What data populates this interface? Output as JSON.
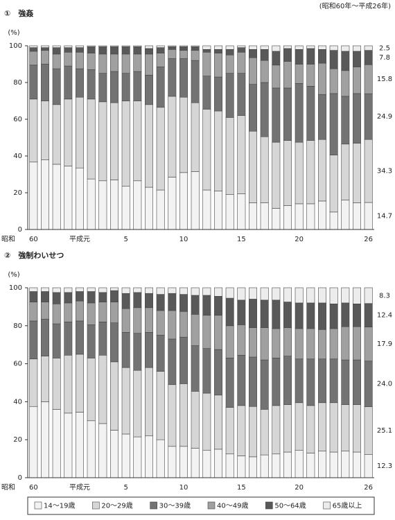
{
  "note": "(昭和60年～平成26年)",
  "chart_data": [
    {
      "type": "stacked_bar",
      "title": "①　強姦",
      "ylabel": "(%)",
      "xlabel": "昭和",
      "categories": [
        "60",
        null,
        null,
        null,
        "平成元",
        null,
        null,
        null,
        "5",
        null,
        null,
        null,
        null,
        "10",
        null,
        null,
        null,
        null,
        "15",
        null,
        null,
        null,
        null,
        "20",
        null,
        null,
        null,
        null,
        null,
        "26"
      ],
      "ylim": [
        0,
        100
      ],
      "yticks": [
        0,
        20,
        40,
        60,
        80,
        100
      ],
      "series": [
        {
          "color": "#f2f2f2",
          "values": [
            36.7,
            38,
            35.5,
            34.5,
            33.5,
            27.5,
            26.5,
            27,
            23.5,
            26.5,
            23,
            21.5,
            28.5,
            31,
            31.5,
            21.5,
            21,
            19,
            19.5,
            14.5,
            14.5,
            11.5,
            13,
            14,
            14,
            15.5,
            9.5,
            16,
            14.5,
            14.7
          ],
          "value_labels": [
            null,
            null,
            null,
            null,
            null,
            null,
            null,
            null,
            null,
            null,
            null,
            null,
            null,
            null,
            null,
            null,
            null,
            null,
            null,
            null,
            null,
            null,
            null,
            null,
            null,
            null,
            null,
            null,
            null,
            "14.7"
          ]
        },
        {
          "color": "#d6d6d6",
          "values": [
            34.3,
            32,
            32.5,
            36.5,
            38.5,
            43.5,
            43,
            42,
            46.5,
            43.5,
            45,
            45,
            44,
            41,
            37.5,
            44,
            43.5,
            42,
            42.5,
            39,
            36,
            36,
            35.5,
            33.5,
            34.5,
            33.5,
            31,
            30.5,
            32.5,
            34.3
          ],
          "value_labels": [
            null,
            null,
            null,
            null,
            null,
            null,
            null,
            null,
            null,
            null,
            null,
            null,
            null,
            null,
            null,
            null,
            null,
            null,
            null,
            null,
            null,
            null,
            null,
            null,
            null,
            null,
            null,
            null,
            null,
            "34.3"
          ]
        },
        {
          "color": "#737373",
          "values": [
            18.5,
            20,
            19.5,
            18,
            15.5,
            16,
            15.5,
            17,
            15,
            16,
            16,
            22,
            20.5,
            21,
            23,
            18,
            18.5,
            24,
            23,
            25.5,
            29.5,
            29.5,
            28.5,
            32,
            29.5,
            24.5,
            33.5,
            26,
            27,
            24.9
          ],
          "value_labels": [
            null,
            null,
            null,
            null,
            null,
            null,
            null,
            null,
            null,
            null,
            null,
            null,
            null,
            null,
            null,
            null,
            null,
            null,
            null,
            null,
            null,
            null,
            null,
            null,
            null,
            null,
            null,
            null,
            null,
            "24.9"
          ]
        },
        {
          "color": "#a0a0a0",
          "values": [
            7.5,
            7.5,
            8,
            7.5,
            9,
            9,
            10.5,
            9.5,
            10.5,
            9.5,
            11.5,
            7.5,
            5,
            4.5,
            5.5,
            13,
            13,
            10,
            11.5,
            14.5,
            12,
            12.5,
            14.5,
            10.5,
            12,
            17,
            13.5,
            14,
            14.5,
            15.8
          ],
          "value_labels": [
            null,
            null,
            null,
            null,
            null,
            null,
            null,
            null,
            null,
            null,
            null,
            null,
            null,
            null,
            null,
            null,
            null,
            null,
            null,
            null,
            null,
            null,
            null,
            null,
            null,
            null,
            null,
            null,
            null,
            "15.8"
          ]
        },
        {
          "color": "#595959",
          "values": [
            2,
            1.5,
            3.5,
            2.5,
            2.5,
            3.5,
            4,
            4,
            4,
            4,
            3,
            3,
            1.5,
            2,
            2,
            1.5,
            2,
            3,
            2.5,
            4.5,
            6,
            7.5,
            7,
            8,
            8.5,
            7.5,
            10,
            10.5,
            8.5,
            7.8
          ],
          "value_labels": [
            null,
            null,
            null,
            null,
            null,
            null,
            null,
            null,
            null,
            null,
            null,
            null,
            null,
            null,
            null,
            null,
            null,
            null,
            null,
            null,
            null,
            null,
            null,
            null,
            null,
            null,
            null,
            null,
            null,
            "7.8"
          ]
        },
        {
          "color": "#ececec",
          "values": [
            1,
            1,
            1,
            1,
            1,
            0.5,
            0.5,
            0.5,
            0.5,
            0.5,
            1.5,
            1,
            0.5,
            0.5,
            0.5,
            2,
            2,
            2,
            1,
            2,
            2,
            3,
            1.5,
            2,
            1.5,
            2,
            2.5,
            3,
            3,
            2.5
          ],
          "value_labels": [
            null,
            null,
            null,
            null,
            null,
            null,
            null,
            null,
            null,
            null,
            null,
            null,
            null,
            null,
            null,
            null,
            null,
            null,
            null,
            null,
            null,
            null,
            null,
            null,
            null,
            null,
            null,
            null,
            null,
            "2.5"
          ]
        }
      ]
    },
    {
      "type": "stacked_bar",
      "title": "②　強制わいせつ",
      "ylabel": "(%)",
      "xlabel": "昭和",
      "categories": [
        "60",
        null,
        null,
        null,
        "平成元",
        null,
        null,
        null,
        "5",
        null,
        null,
        null,
        null,
        "10",
        null,
        null,
        null,
        null,
        "15",
        null,
        null,
        null,
        null,
        "20",
        null,
        null,
        null,
        null,
        null,
        "26"
      ],
      "ylim": [
        0,
        100
      ],
      "yticks": [
        0,
        20,
        40,
        60,
        80,
        100
      ],
      "series": [
        {
          "name": "14～19歳",
          "color": "#f2f2f2",
          "values": [
            37.5,
            40,
            36,
            34,
            34.5,
            30,
            28.5,
            25,
            23,
            21.5,
            22,
            20,
            16.5,
            16.5,
            15.5,
            14.5,
            15,
            12.5,
            11.5,
            11,
            12,
            12.5,
            13.5,
            14.5,
            13,
            14,
            13.5,
            14,
            13.5,
            12.3
          ],
          "value_labels": [
            null,
            null,
            null,
            null,
            null,
            null,
            null,
            null,
            null,
            null,
            null,
            null,
            null,
            null,
            null,
            null,
            null,
            null,
            null,
            null,
            null,
            null,
            null,
            null,
            null,
            null,
            null,
            null,
            null,
            "12.3"
          ]
        },
        {
          "name": "20～29歳",
          "color": "#d6d6d6",
          "values": [
            25,
            24,
            27,
            30.5,
            30.5,
            33,
            36,
            36,
            35,
            35,
            36,
            36,
            32.5,
            33,
            30,
            30,
            28.5,
            24.5,
            26.5,
            26.5,
            24,
            25.5,
            25,
            25,
            25,
            25.5,
            26,
            24.5,
            25,
            25.1
          ],
          "value_labels": [
            null,
            null,
            null,
            null,
            null,
            null,
            null,
            null,
            null,
            null,
            null,
            null,
            null,
            null,
            null,
            null,
            null,
            null,
            null,
            null,
            null,
            null,
            null,
            null,
            null,
            null,
            null,
            null,
            null,
            "25.1"
          ]
        },
        {
          "name": "30～39歳",
          "color": "#737373",
          "values": [
            20,
            19.5,
            18,
            17.5,
            17.5,
            17.5,
            17.5,
            20.5,
            18.5,
            19.5,
            18.5,
            19,
            24,
            24.5,
            24,
            23.5,
            24,
            26,
            26.5,
            26,
            26,
            25,
            25.5,
            23,
            24.5,
            23,
            23,
            23.5,
            23.5,
            24.0
          ],
          "value_labels": [
            null,
            null,
            null,
            null,
            null,
            null,
            null,
            null,
            null,
            null,
            null,
            null,
            null,
            null,
            null,
            null,
            null,
            null,
            null,
            null,
            null,
            null,
            null,
            null,
            null,
            null,
            null,
            null,
            null,
            "24.0"
          ]
        },
        {
          "name": "40～49歳",
          "color": "#a0a0a0",
          "values": [
            10,
            9,
            10.5,
            10,
            10.5,
            11.5,
            10.5,
            11,
            12.5,
            13.5,
            13,
            13,
            15,
            13.5,
            16.5,
            17.5,
            18,
            17,
            16,
            15.5,
            17,
            15.5,
            15,
            16,
            16,
            15.5,
            16,
            17.5,
            17.5,
            17.9
          ],
          "value_labels": [
            null,
            null,
            null,
            null,
            null,
            null,
            null,
            null,
            null,
            null,
            null,
            null,
            null,
            null,
            null,
            null,
            null,
            null,
            null,
            null,
            null,
            null,
            null,
            null,
            null,
            null,
            null,
            null,
            null,
            "17.9"
          ]
        },
        {
          "name": "50～64歳",
          "color": "#595959",
          "values": [
            5.5,
            5.5,
            6,
            5.5,
            5,
            6,
            5,
            6,
            8,
            8,
            7.5,
            8.5,
            9,
            9,
            10,
            10.5,
            10,
            14.5,
            13,
            15,
            14.5,
            15,
            13.5,
            13.5,
            13.5,
            14,
            13,
            12.5,
            12,
            12.4
          ],
          "value_labels": [
            null,
            null,
            null,
            null,
            null,
            null,
            null,
            null,
            null,
            null,
            null,
            null,
            null,
            null,
            null,
            null,
            null,
            null,
            null,
            null,
            null,
            null,
            null,
            null,
            null,
            null,
            null,
            null,
            null,
            "12.4"
          ]
        },
        {
          "name": "65歳以上",
          "color": "#ececec",
          "values": [
            2,
            2,
            2.5,
            2.5,
            2,
            2,
            2.5,
            1.5,
            3,
            2.5,
            3,
            3.5,
            3,
            3.5,
            4,
            4,
            4.5,
            5.5,
            6.5,
            6,
            6.5,
            6.5,
            7.5,
            8,
            8,
            8,
            8.5,
            8,
            8.5,
            8.3
          ],
          "value_labels": [
            null,
            null,
            null,
            null,
            null,
            null,
            null,
            null,
            null,
            null,
            null,
            null,
            null,
            null,
            null,
            null,
            null,
            null,
            null,
            null,
            null,
            null,
            null,
            null,
            null,
            null,
            null,
            null,
            null,
            "8.3"
          ]
        }
      ]
    }
  ]
}
